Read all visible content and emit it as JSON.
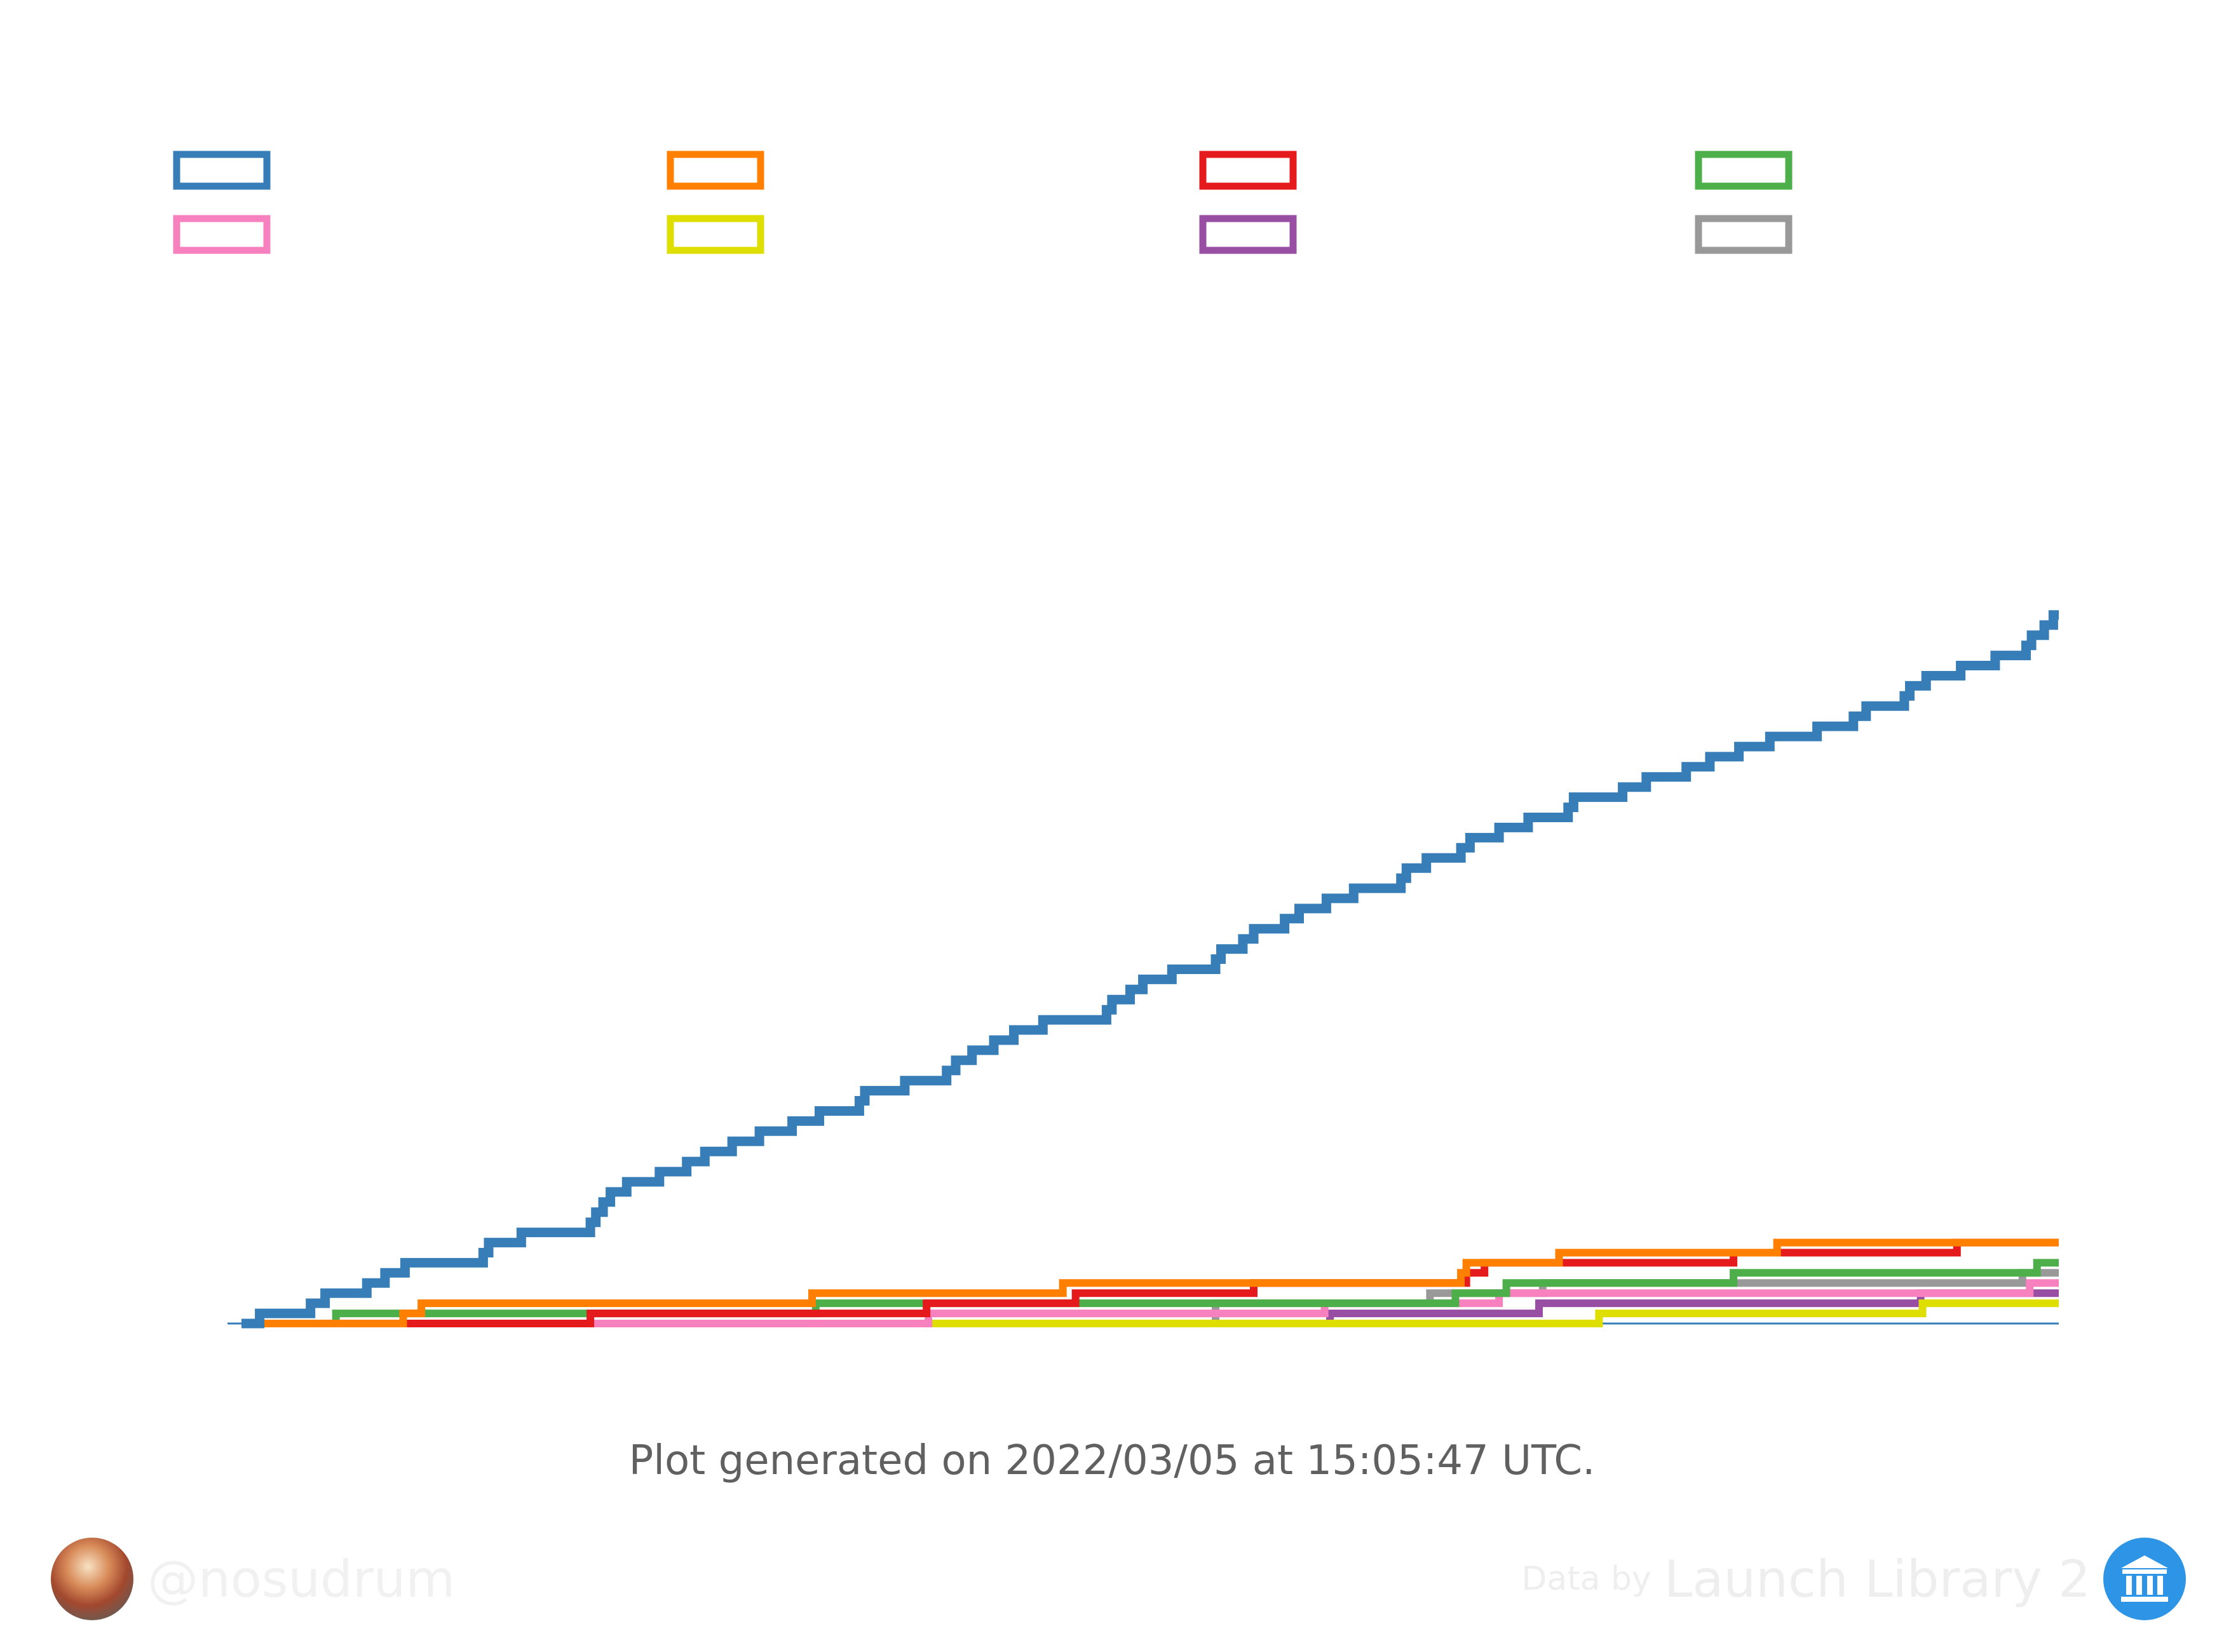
{
  "caption": "Plot generated on 2022/03/05 at 15:05:47 UTC.",
  "author": {
    "handle": "@nosudrum",
    "avatar_icon": "astronaut-avatar-icon"
  },
  "credit": {
    "prefix": "Data by",
    "name": "Launch Library 2",
    "logo_icon": "launch-library-logo-icon"
  },
  "chart_data": {
    "type": "line",
    "step": true,
    "title": "",
    "xlabel": "",
    "ylabel": "",
    "grid": false,
    "legend_position": "top",
    "xlim": [
      0,
      100
    ],
    "ylim": [
      0,
      100
    ],
    "series": [
      {
        "color": "#377eb8",
        "points": [
          [
            0,
            0
          ],
          [
            1,
            1
          ],
          [
            3.8,
            2
          ],
          [
            4.6,
            3
          ],
          [
            6.9,
            4
          ],
          [
            7.9,
            5
          ],
          [
            9,
            6
          ],
          [
            13,
            6
          ],
          [
            13.3,
            7
          ],
          [
            13.6,
            8
          ],
          [
            15.4,
            9
          ],
          [
            19,
            9
          ],
          [
            19.2,
            10
          ],
          [
            19.5,
            11
          ],
          [
            19.9,
            12
          ],
          [
            20.3,
            13
          ],
          [
            21.2,
            14
          ],
          [
            23,
            15
          ],
          [
            24.5,
            16
          ],
          [
            25.5,
            17
          ],
          [
            27,
            18
          ],
          [
            28.5,
            19
          ],
          [
            30.3,
            20
          ],
          [
            31.8,
            21
          ],
          [
            34,
            22
          ],
          [
            34.3,
            23
          ],
          [
            36.5,
            24
          ],
          [
            38.5,
            24
          ],
          [
            38.8,
            25
          ],
          [
            39.3,
            26
          ],
          [
            40.2,
            27
          ],
          [
            41.4,
            28
          ],
          [
            42.5,
            29
          ],
          [
            44.1,
            30
          ],
          [
            47.6,
            31
          ],
          [
            47.9,
            32
          ],
          [
            48.9,
            33
          ],
          [
            49.6,
            34
          ],
          [
            51.2,
            35
          ],
          [
            53.3,
            35
          ],
          [
            53.6,
            36
          ],
          [
            53.9,
            37
          ],
          [
            55.1,
            38
          ],
          [
            55.7,
            39
          ],
          [
            57.4,
            40
          ],
          [
            58.2,
            41
          ],
          [
            59.7,
            42
          ],
          [
            61.2,
            43
          ],
          [
            63.8,
            44
          ],
          [
            64.1,
            45
          ],
          [
            65.2,
            46
          ],
          [
            67.1,
            47
          ],
          [
            67.6,
            48
          ],
          [
            69.2,
            49
          ],
          [
            70.8,
            50
          ],
          [
            73,
            51
          ],
          [
            73.3,
            52
          ],
          [
            76,
            53
          ],
          [
            77.3,
            54
          ],
          [
            79.5,
            55
          ],
          [
            80.8,
            56
          ],
          [
            82.4,
            57
          ],
          [
            84.1,
            58
          ],
          [
            86.7,
            59
          ],
          [
            88.7,
            60
          ],
          [
            89.4,
            61
          ],
          [
            91.2,
            61
          ],
          [
            91.5,
            62
          ],
          [
            91.8,
            63
          ],
          [
            92.7,
            64
          ],
          [
            94.6,
            65
          ],
          [
            96.5,
            66
          ],
          [
            98.2,
            67
          ],
          [
            98.5,
            68
          ],
          [
            99.2,
            69
          ],
          [
            99.7,
            70
          ],
          [
            100,
            70
          ]
        ]
      },
      {
        "color": "#ff7f00",
        "points": [
          [
            0,
            0
          ],
          [
            8.7,
            0
          ],
          [
            8.9,
            1
          ],
          [
            9.9,
            2
          ],
          [
            31.4,
            3
          ],
          [
            45.2,
            4
          ],
          [
            67.1,
            5
          ],
          [
            67.4,
            6
          ],
          [
            72.5,
            7
          ],
          [
            84.5,
            8
          ],
          [
            100,
            8
          ]
        ]
      },
      {
        "color": "#e41a1c",
        "points": [
          [
            0,
            0
          ],
          [
            9,
            0
          ],
          [
            19,
            0
          ],
          [
            19.2,
            1
          ],
          [
            37.7,
            2
          ],
          [
            45.9,
            3
          ],
          [
            55.4,
            3
          ],
          [
            55.7,
            4
          ],
          [
            67.1,
            4
          ],
          [
            67.4,
            5
          ],
          [
            68.4,
            6
          ],
          [
            82.1,
            7
          ],
          [
            94.4,
            8
          ],
          [
            100,
            8
          ]
        ]
      },
      {
        "color": "#4daf4a",
        "points": [
          [
            0,
            0
          ],
          [
            5,
            0
          ],
          [
            5.2,
            1
          ],
          [
            9.9,
            1
          ],
          [
            10.2,
            1
          ],
          [
            31.4,
            1
          ],
          [
            31.6,
            2
          ],
          [
            36.3,
            2
          ],
          [
            66.5,
            2
          ],
          [
            66.8,
            3
          ],
          [
            69.6,
            4
          ],
          [
            82.1,
            5
          ],
          [
            98.6,
            5
          ],
          [
            98.8,
            6
          ],
          [
            100,
            6
          ]
        ]
      },
      {
        "color": "#f781bf",
        "points": [
          [
            0,
            0
          ],
          [
            37.6,
            0
          ],
          [
            37.8,
            1
          ],
          [
            59.4,
            1
          ],
          [
            59.6,
            2
          ],
          [
            68.8,
            2
          ],
          [
            69.2,
            3
          ],
          [
            98.2,
            3
          ],
          [
            98.4,
            4
          ],
          [
            100,
            4
          ]
        ]
      },
      {
        "color": "#dede00",
        "points": [
          [
            0,
            0
          ],
          [
            74.5,
            0
          ],
          [
            74.7,
            1
          ],
          [
            92.3,
            1
          ],
          [
            92.5,
            2
          ],
          [
            100,
            2
          ]
        ]
      },
      {
        "color": "#984ea3",
        "points": [
          [
            0,
            0
          ],
          [
            59.7,
            0
          ],
          [
            59.9,
            1
          ],
          [
            71.2,
            1
          ],
          [
            71.4,
            2
          ],
          [
            92.2,
            2
          ],
          [
            92.4,
            3
          ],
          [
            100,
            3
          ]
        ]
      },
      {
        "color": "#999999",
        "points": [
          [
            0,
            0
          ],
          [
            53.4,
            0
          ],
          [
            53.6,
            2
          ],
          [
            65.2,
            2
          ],
          [
            65.4,
            3
          ],
          [
            71.4,
            3
          ],
          [
            71.6,
            4
          ],
          [
            97.8,
            4
          ],
          [
            98,
            5
          ],
          [
            100,
            5
          ]
        ]
      }
    ]
  }
}
